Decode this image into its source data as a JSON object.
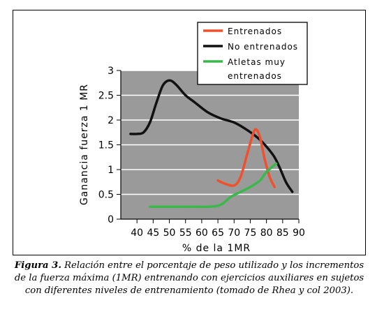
{
  "chart_data": {
    "type": "line",
    "xlabel": "% de la 1MR",
    "ylabel": "Ganancia fuerza 1 MR",
    "xlim": [
      35,
      90
    ],
    "ylim": [
      0,
      3
    ],
    "x_ticks": [
      40,
      45,
      50,
      55,
      60,
      65,
      70,
      75,
      80,
      85,
      90
    ],
    "y_ticks": [
      0,
      0.5,
      1,
      1.5,
      2,
      2.5,
      3
    ],
    "grid": "horizontal",
    "legend_position": "top-right",
    "series": [
      {
        "name": "Entrenados",
        "color": "#f0502c",
        "points": [
          [
            65,
            0.78
          ],
          [
            67,
            0.72
          ],
          [
            70,
            0.68
          ],
          [
            72,
            0.85
          ],
          [
            74,
            1.3
          ],
          [
            76,
            1.75
          ],
          [
            77,
            1.8
          ],
          [
            78,
            1.65
          ],
          [
            79.5,
            1.2
          ],
          [
            81,
            0.85
          ],
          [
            82.5,
            0.65
          ]
        ]
      },
      {
        "name": "No entrenados",
        "color": "#111111",
        "points": [
          [
            38,
            1.72
          ],
          [
            40,
            1.72
          ],
          [
            42,
            1.75
          ],
          [
            44,
            1.95
          ],
          [
            46,
            2.35
          ],
          [
            48,
            2.7
          ],
          [
            50,
            2.8
          ],
          [
            52,
            2.72
          ],
          [
            55,
            2.5
          ],
          [
            58,
            2.35
          ],
          [
            62,
            2.15
          ],
          [
            66,
            2.03
          ],
          [
            70,
            1.95
          ],
          [
            74,
            1.8
          ],
          [
            78,
            1.6
          ],
          [
            82,
            1.3
          ],
          [
            84,
            1.05
          ],
          [
            86,
            0.75
          ],
          [
            88,
            0.55
          ]
        ]
      },
      {
        "name": "Atletas muy entrenados",
        "color": "#3bb84a",
        "points": [
          [
            44,
            0.25
          ],
          [
            53,
            0.25
          ],
          [
            55,
            0.25
          ],
          [
            57,
            0.25
          ],
          [
            65,
            0.27
          ],
          [
            69,
            0.45
          ],
          [
            72,
            0.55
          ],
          [
            75,
            0.65
          ],
          [
            78,
            0.78
          ],
          [
            80,
            0.95
          ],
          [
            83,
            1.12
          ]
        ]
      }
    ],
    "legend_entries": [
      "Entrenados",
      "No entrenados",
      "Atletas muy",
      "entrenados"
    ]
  },
  "caption": {
    "label": "Figura 3.",
    "text": " Relación entre el porcentaje de peso utilizado y los incrementos de la fuerza máxima (1MR) entrenando con ejercicios auxiliares en sujetos con diferentes niveles de entrenamiento (tomado de Rhea y col 2003)."
  }
}
